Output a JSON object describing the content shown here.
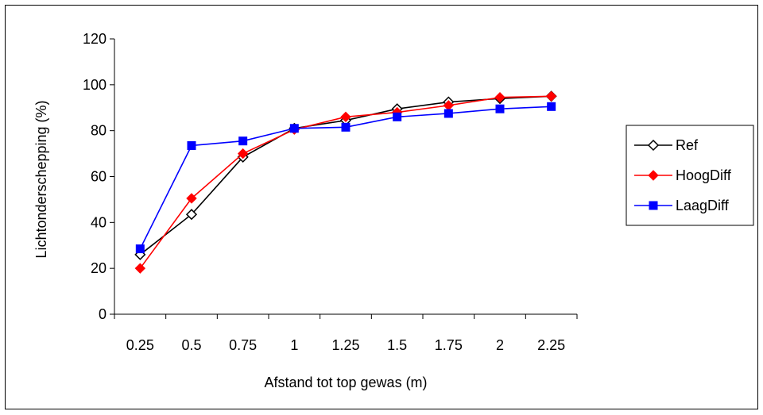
{
  "chart_data": {
    "type": "line",
    "x": [
      "0.25",
      "0.5",
      "0.75",
      "1",
      "1.25",
      "1.5",
      "1.75",
      "2",
      "2.25"
    ],
    "y_ticks": [
      "0",
      "20",
      "40",
      "60",
      "80",
      "100",
      "120"
    ],
    "xlabel": "Afstand tot top gewas (m)",
    "ylabel": "Lichtonderschepping (%)",
    "ylim": [
      0,
      120
    ],
    "grid": false,
    "legend_position": "right",
    "series": [
      {
        "name": "Ref",
        "color": "#000000",
        "marker": "diamond-open",
        "values": [
          26,
          43.5,
          68.5,
          81,
          84.5,
          89.5,
          92.5,
          94,
          95
        ]
      },
      {
        "name": "HoogDiff",
        "color": "#ff0000",
        "marker": "diamond-filled",
        "values": [
          20,
          50.5,
          70,
          80.5,
          86,
          88,
          91,
          94.5,
          95
        ]
      },
      {
        "name": "LaagDiff",
        "color": "#0000ff",
        "marker": "square-filled",
        "values": [
          28.5,
          73.5,
          75.5,
          81,
          81.5,
          86,
          87.5,
          89.5,
          90.5
        ]
      }
    ]
  }
}
